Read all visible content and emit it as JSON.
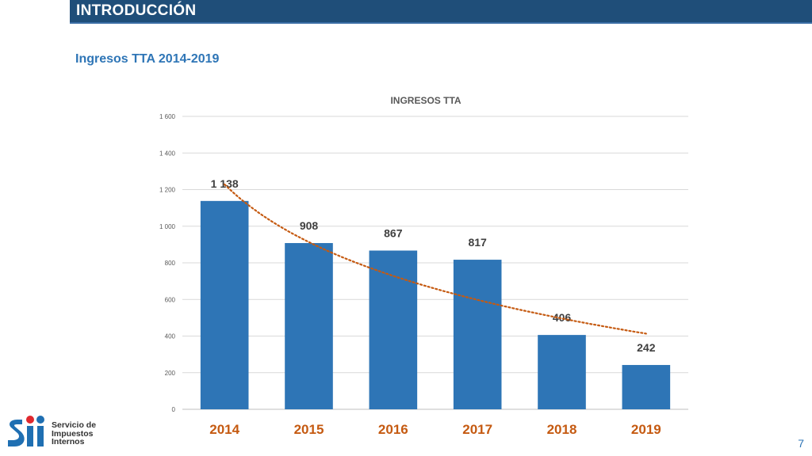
{
  "header": {
    "title": "INTRODUCCIÓN"
  },
  "subtitle": "Ingresos TTA 2014-2019",
  "chart_data": {
    "type": "bar",
    "title": "INGRESOS TTA",
    "categories": [
      "2014",
      "2015",
      "2016",
      "2017",
      "2018",
      "2019"
    ],
    "values": [
      1138,
      908,
      867,
      817,
      406,
      242
    ],
    "value_labels": [
      "1 138",
      "908",
      "867",
      "817",
      "406",
      "242"
    ],
    "yticks": [
      "0",
      "200",
      "400",
      "600",
      "800",
      "1 000",
      "1 200",
      "1 400",
      "1 600"
    ],
    "ylim": [
      0,
      1600
    ],
    "grid": true,
    "trendline": "dotted-logarithmic",
    "colors": {
      "bar": "#2e75b6",
      "trend": "#c55a11",
      "category_label": "#c55a11"
    }
  },
  "logo": {
    "line1": "Servicio de",
    "line2": "Impuestos",
    "line3": "Internos"
  },
  "page_number": "7"
}
